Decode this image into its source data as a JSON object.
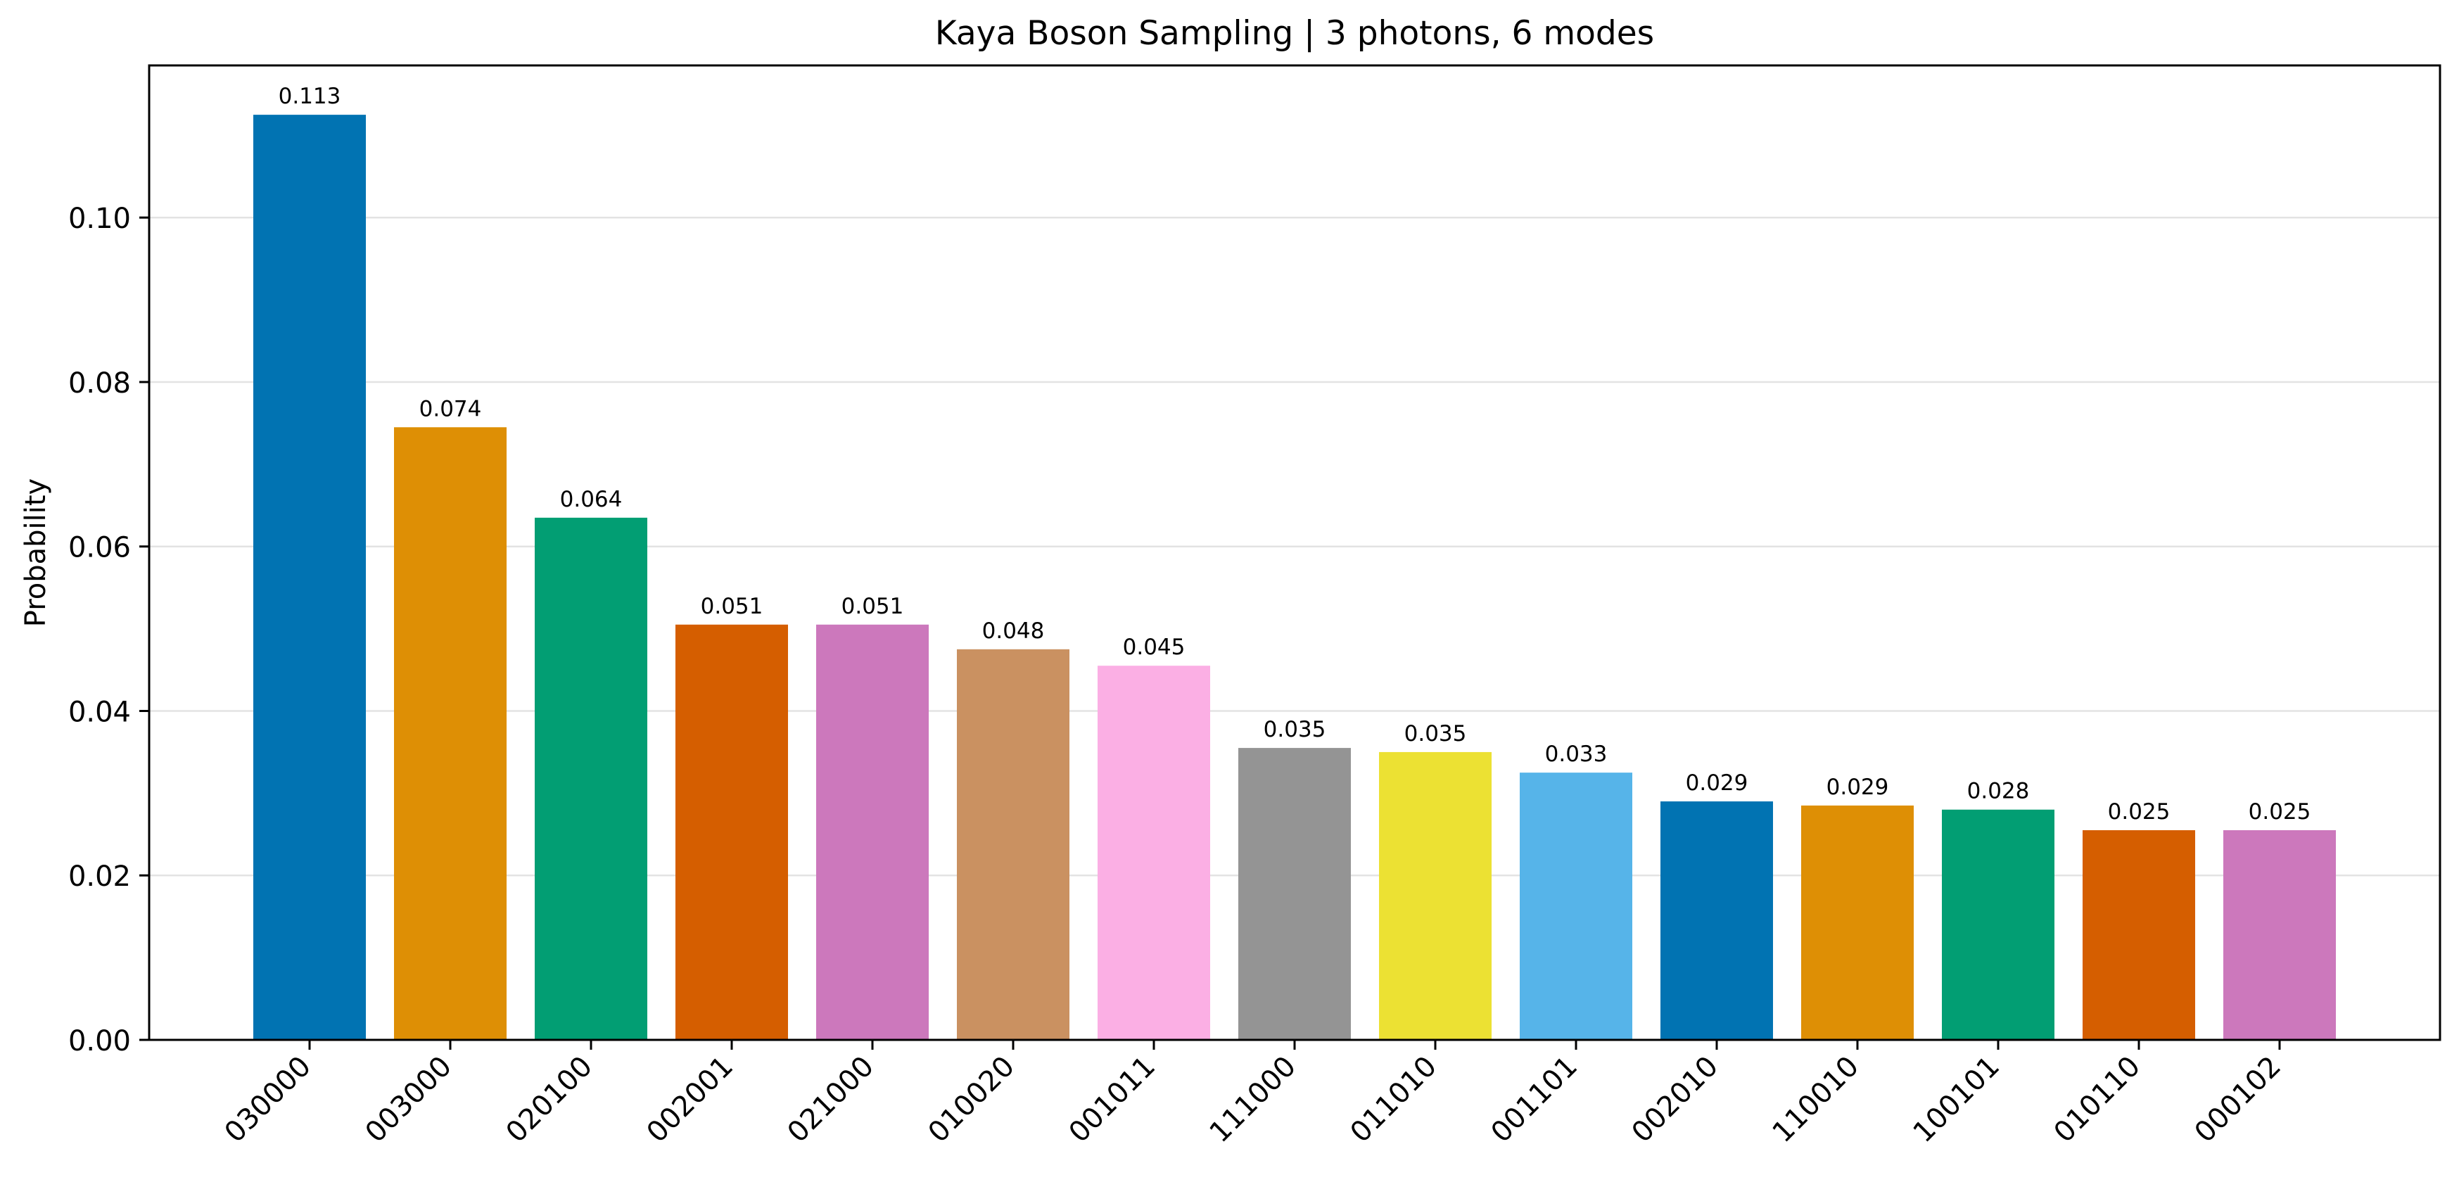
{
  "chart_data": {
    "type": "bar",
    "title": "Kaya Boson Sampling | 3 photons, 6 modes",
    "xlabel": "",
    "ylabel": "Probability",
    "categories": [
      "030000",
      "003000",
      "020100",
      "002001",
      "021000",
      "010020",
      "001011",
      "111000",
      "011010",
      "001101",
      "002010",
      "110010",
      "100101",
      "010110",
      "000102"
    ],
    "values": [
      0.1125,
      0.0745,
      0.0635,
      0.0505,
      0.0505,
      0.0475,
      0.0455,
      0.0355,
      0.035,
      0.0325,
      0.029,
      0.0285,
      0.028,
      0.0255,
      0.0255
    ],
    "data_labels": [
      "0.113",
      "0.074",
      "0.064",
      "0.051",
      "0.051",
      "0.048",
      "0.045",
      "0.035",
      "0.035",
      "0.033",
      "0.029",
      "0.029",
      "0.028",
      "0.025",
      "0.025"
    ],
    "colors": [
      "#0173b2",
      "#de8f05",
      "#029e73",
      "#d55e00",
      "#cc78bc",
      "#ca9161",
      "#fbafe4",
      "#949494",
      "#ece133",
      "#56b4e9",
      "#0173b2",
      "#de8f05",
      "#029e73",
      "#d55e00",
      "#cc78bc"
    ],
    "ylim": [
      0,
      0.1185
    ],
    "yticks": [
      0.0,
      0.02,
      0.04,
      0.06,
      0.08,
      0.1
    ],
    "ytick_labels": [
      "0.00",
      "0.02",
      "0.04",
      "0.06",
      "0.08",
      "0.10"
    ],
    "grid": "horizontal",
    "legend": "none"
  }
}
